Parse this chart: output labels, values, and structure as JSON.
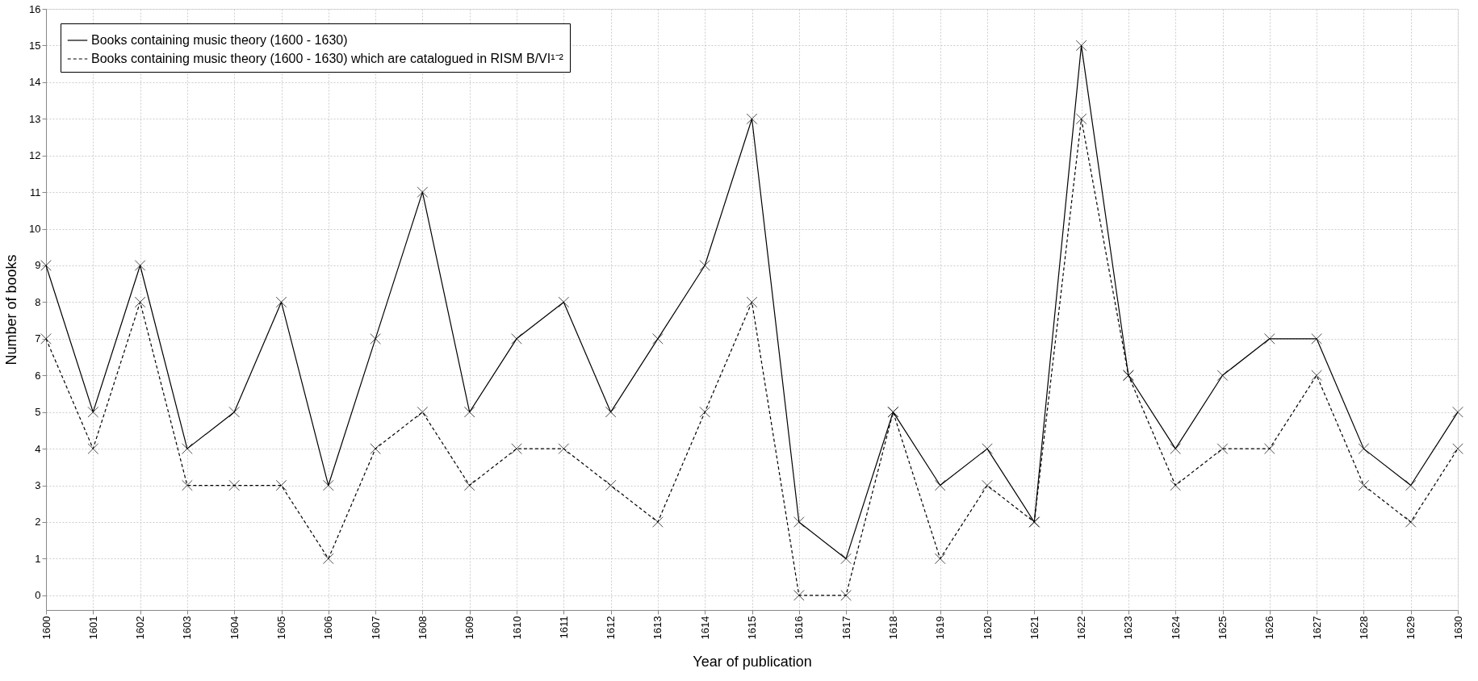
{
  "chart_data": {
    "type": "line",
    "xlabel": "Year of publication",
    "ylabel": "Number of books",
    "x": [
      1600,
      1601,
      1602,
      1603,
      1604,
      1605,
      1606,
      1607,
      1608,
      1609,
      1610,
      1611,
      1612,
      1613,
      1614,
      1615,
      1616,
      1617,
      1618,
      1619,
      1620,
      1621,
      1622,
      1623,
      1624,
      1625,
      1626,
      1627,
      1628,
      1629,
      1630
    ],
    "series": [
      {
        "name": "Books containing music theory (1600 - 1630)",
        "color": "#000000",
        "line_style": "solid",
        "values": [
          9,
          5,
          9,
          4,
          5,
          8,
          3,
          7,
          11,
          5,
          7,
          8,
          5,
          7,
          9,
          13,
          2,
          1,
          5,
          3,
          4,
          2,
          15,
          6,
          4,
          6,
          7,
          7,
          4,
          3,
          5
        ]
      },
      {
        "name": "Books containing music theory (1600 - 1630) which are catalogued in RISM B/VI¹⁻²",
        "color": "#000000",
        "line_style": "dashed",
        "values": [
          7,
          4,
          8,
          3,
          3,
          3,
          1,
          4,
          5,
          3,
          4,
          4,
          3,
          2,
          5,
          8,
          0,
          0,
          5,
          1,
          3,
          2,
          13,
          6,
          3,
          4,
          4,
          6,
          3,
          2,
          4
        ]
      }
    ],
    "xlim": [
      1600,
      1630
    ],
    "xticks": [
      1600,
      1601,
      1602,
      1603,
      1604,
      1605,
      1606,
      1607,
      1608,
      1609,
      1610,
      1611,
      1612,
      1613,
      1614,
      1615,
      1616,
      1617,
      1618,
      1619,
      1620,
      1621,
      1622,
      1623,
      1624,
      1625,
      1626,
      1627,
      1628,
      1629,
      1630
    ],
    "ylim": [
      -0.4,
      16
    ],
    "yticks": [
      0,
      1,
      2,
      3,
      4,
      5,
      6,
      7,
      8,
      9,
      10,
      11,
      12,
      13,
      14,
      15,
      16
    ],
    "grid": true,
    "legend": "top left",
    "marker": "cross"
  }
}
